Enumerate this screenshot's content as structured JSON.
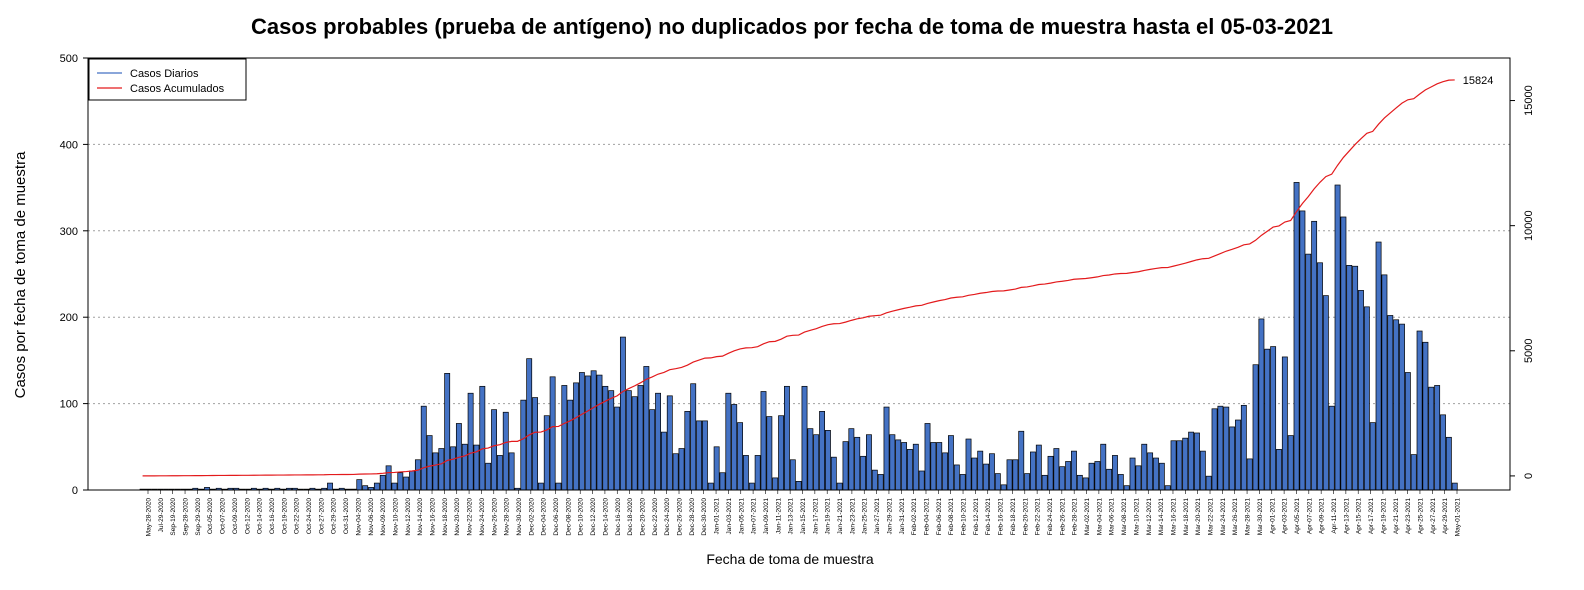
{
  "chart_data": {
    "type": "bar",
    "title": "Casos probables (prueba de antígeno) no duplicados por fecha de toma de muestra hasta el 05-03-2021",
    "xlabel": "Fecha de toma de muestra",
    "ylabel": "Casos por fecha de toma de muestra",
    "ylim": [
      0,
      500
    ],
    "y2lim": [
      -563,
      16700
    ],
    "yticks": [
      0,
      100,
      200,
      300,
      400,
      500
    ],
    "y2ticks": [
      0,
      5000,
      10000,
      15000
    ],
    "grid": "horizontal dotted",
    "legend_position": "top-left",
    "end_label": "15824",
    "colors": {
      "bars": "#4472c4",
      "bar_stroke": "#000000",
      "cumulative": "#e31a1c",
      "grid": "#a0a0a0"
    },
    "x_tick_labels": [
      "May-28-2020",
      "Jul-29-2020",
      "Sep-19-2020",
      "Sep-28-2020",
      "Sep-29-2020",
      "Oct-05-2020",
      "Oct-07-2020",
      "Oct-09-2020",
      "Oct-12-2020",
      "Oct-14-2020",
      "Oct-16-2020",
      "Oct-19-2020",
      "Oct-22-2020",
      "Oct-24-2020",
      "Oct-27-2020",
      "Oct-29-2020",
      "Oct-31-2020",
      "Nov-04-2020",
      "Nov-06-2020",
      "Nov-09-2020",
      "Nov-10-2020",
      "Nov-12-2020",
      "Nov-14-2020",
      "Nov-16-2020",
      "Nov-18-2020",
      "Nov-20-2020",
      "Nov-22-2020",
      "Nov-24-2020",
      "Nov-26-2020",
      "Nov-28-2020",
      "Nov-30-2020",
      "Dec-02-2020",
      "Dec-04-2020",
      "Dec-06-2020",
      "Dec-08-2020",
      "Dec-10-2020",
      "Dec-12-2020",
      "Dec-14-2020",
      "Dec-16-2020",
      "Dec-18-2020",
      "Dec-20-2020",
      "Dec-22-2020",
      "Dec-24-2020",
      "Dec-26-2020",
      "Dec-28-2020",
      "Dec-30-2020",
      "Jan-01-2021",
      "Jan-03-2021",
      "Jan-05-2021",
      "Jan-07-2021",
      "Jan-09-2021",
      "Jan-11-2021",
      "Jan-13-2021",
      "Jan-15-2021",
      "Jan-17-2021",
      "Jan-19-2021",
      "Jan-21-2021",
      "Jan-23-2021",
      "Jan-25-2021",
      "Jan-27-2021",
      "Jan-29-2021",
      "Jan-31-2021",
      "Feb-02-2021",
      "Feb-04-2021",
      "Feb-06-2021",
      "Feb-08-2021",
      "Feb-10-2021",
      "Feb-12-2021",
      "Feb-14-2021",
      "Feb-16-2021",
      "Feb-18-2021",
      "Feb-20-2021",
      "Feb-22-2021",
      "Feb-24-2021",
      "Feb-26-2021",
      "Feb-28-2021",
      "Mar-02-2021",
      "Mar-04-2021",
      "Mar-06-2021",
      "Mar-08-2021",
      "Mar-10-2021",
      "Mar-12-2021",
      "Mar-14-2021",
      "Mar-16-2021",
      "Mar-18-2021",
      "Mar-20-2021",
      "Mar-22-2021",
      "Mar-24-2021",
      "Mar-26-2021",
      "Mar-28-2021",
      "Mar-30-2021",
      "Apr-01-2021",
      "Apr-03-2021",
      "Apr-05-2021",
      "Apr-07-2021",
      "Apr-09-2021",
      "Apr-11-2021",
      "Apr-13-2021",
      "Apr-15-2021",
      "Apr-17-2021",
      "Apr-19-2021",
      "Apr-21-2021",
      "Apr-23-2021",
      "Apr-25-2021",
      "Apr-27-2021",
      "Apr-29-2021",
      "May-01-2021"
    ],
    "values": [
      1,
      1,
      1,
      1,
      1,
      1,
      1,
      1,
      1,
      2,
      1,
      3,
      1,
      2,
      1,
      2,
      2,
      1,
      1,
      2,
      1,
      2,
      1,
      2,
      1,
      2,
      2,
      1,
      1,
      2,
      1,
      2,
      8,
      1,
      2,
      1,
      1,
      12,
      5,
      3,
      8,
      17,
      28,
      8,
      20,
      15,
      22,
      35,
      97,
      63,
      43,
      48,
      135,
      50,
      77,
      53,
      112,
      52,
      120,
      31,
      93,
      40,
      90,
      43,
      2,
      104,
      152,
      107,
      8,
      86,
      131,
      8,
      121,
      104,
      124,
      136,
      132,
      138,
      133,
      120,
      115,
      96,
      177,
      115,
      108,
      121,
      143,
      93,
      112,
      67,
      109,
      42,
      48,
      91,
      123,
      80,
      80,
      8,
      50,
      20,
      112,
      99,
      78,
      40,
      8,
      40,
      114,
      85,
      14,
      86,
      120,
      35,
      10,
      120,
      71,
      64,
      91,
      69,
      38,
      8,
      56,
      71,
      61,
      39,
      64,
      23,
      18,
      96,
      64,
      58,
      55,
      47,
      53,
      22,
      77,
      55,
      55,
      43,
      63,
      29,
      18,
      59,
      37,
      45,
      30,
      42,
      19,
      6,
      35,
      35,
      68,
      19,
      44,
      52,
      17,
      39,
      48,
      27,
      33,
      45,
      17,
      14,
      31,
      33,
      53,
      24,
      40,
      18,
      5,
      37,
      28,
      53,
      43,
      37,
      31,
      5,
      57,
      57,
      60,
      67,
      66,
      45,
      16,
      94,
      97,
      96,
      73,
      81,
      98,
      36,
      145,
      198,
      163,
      166,
      47,
      154,
      63,
      356,
      323,
      273,
      311,
      263,
      225,
      97,
      353,
      316,
      260,
      259,
      231,
      212,
      78,
      287,
      249,
      202,
      197,
      192,
      136,
      41,
      184,
      171,
      119,
      121,
      87,
      61,
      8
    ]
  }
}
